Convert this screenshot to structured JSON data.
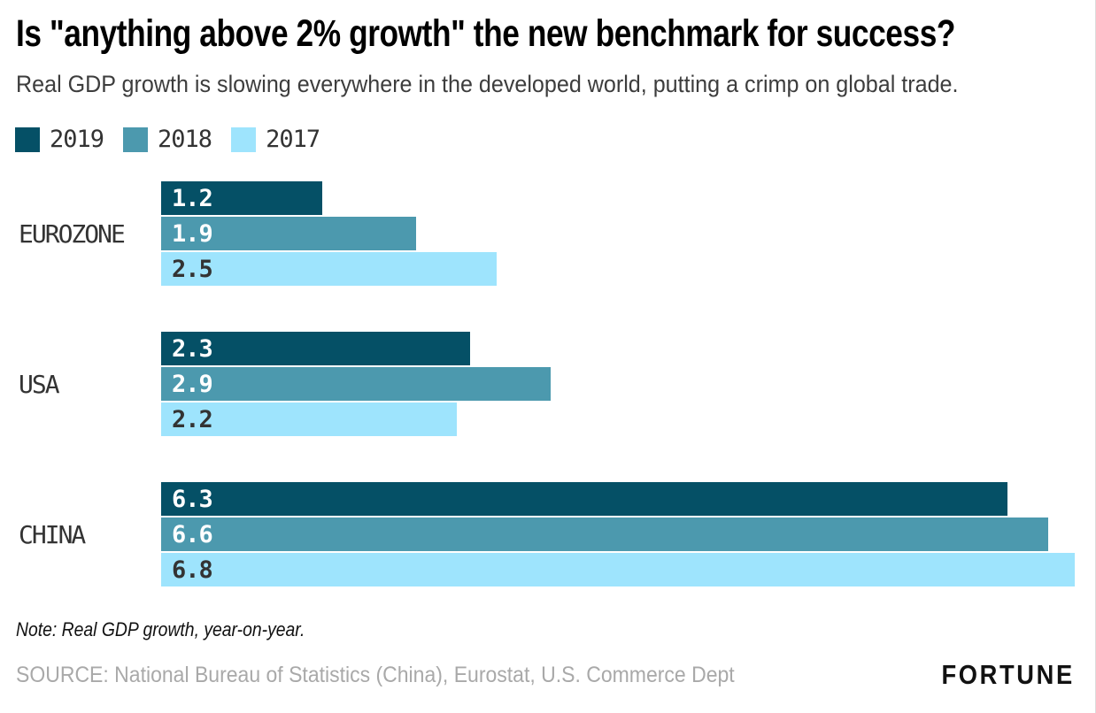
{
  "header": {
    "title": "Is \"anything above 2% growth\" the new benchmark for success?",
    "subtitle": "Real GDP growth is slowing everywhere in the developed world, putting a crimp on global trade."
  },
  "legend": [
    {
      "label": "2019",
      "color": "#055066"
    },
    {
      "label": "2018",
      "color": "#4c99ae"
    },
    {
      "label": "2017",
      "color": "#9ee4fd"
    }
  ],
  "chart_data": {
    "type": "bar",
    "orientation": "horizontal",
    "title": "Is \"anything above 2% growth\" the new benchmark for success?",
    "categories": [
      "EUROZONE",
      "USA",
      "CHINA"
    ],
    "series": [
      {
        "name": "2019",
        "color": "#055066",
        "label_color": "#ffffff",
        "values": [
          1.2,
          2.3,
          6.3
        ]
      },
      {
        "name": "2018",
        "color": "#4c99ae",
        "label_color": "#ffffff",
        "values": [
          1.9,
          2.9,
          6.6
        ]
      },
      {
        "name": "2017",
        "color": "#9ee4fd",
        "label_color": "#333333",
        "values": [
          2.5,
          2.2,
          6.8
        ]
      }
    ],
    "xlim": [
      0,
      6.95
    ],
    "grid": "off",
    "legend_position": "top-left",
    "value_labels": "inside-left",
    "unit": "percent real GDP growth, year-on-year"
  },
  "footer": {
    "note": "Note: Real GDP growth, year-on-year.",
    "source": "SOURCE: National Bureau of Statistics (China), Eurostat, U.S. Commerce Dept",
    "brand": "FORTUNE"
  }
}
